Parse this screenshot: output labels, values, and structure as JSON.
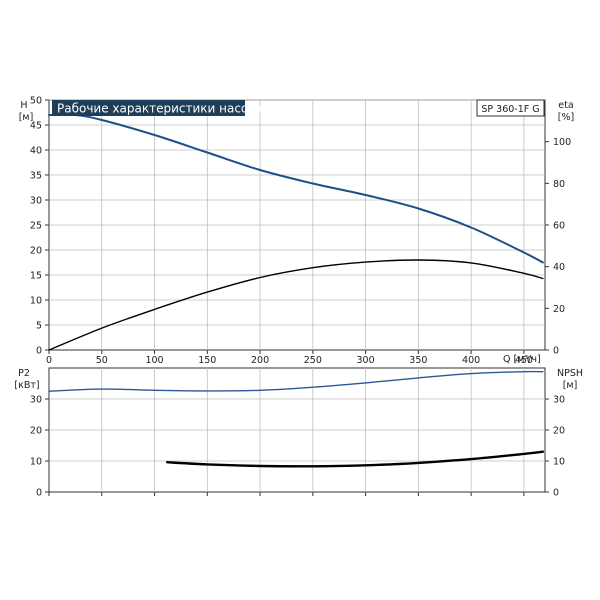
{
  "header": {
    "title": "Рабочие характеристики насоса",
    "model": "SP 360-1F G"
  },
  "colors": {
    "title_bg": "#1f3e5a",
    "title_text": "#ffffff",
    "head_curve": "#1e4f8a",
    "eta_curve": "#000000",
    "p2_curve": "#2a5a95",
    "npsh_curve": "#000000",
    "grid": "#bfbfbf",
    "frame": "#333333"
  },
  "chart_data": [
    {
      "type": "line",
      "name": "head-and-efficiency",
      "xlabel": "Q [м³/ч]",
      "x_ticks": [
        0,
        50,
        100,
        150,
        200,
        250,
        300,
        350,
        400,
        450
      ],
      "xlim": [
        0,
        470
      ],
      "grid": true,
      "left_axis": {
        "label_top": "H",
        "label_unit": "[м]",
        "ylim": [
          0,
          50
        ],
        "ticks": [
          0,
          5,
          10,
          15,
          20,
          25,
          30,
          35,
          40,
          45,
          50
        ]
      },
      "right_axis": {
        "label_top": "eta",
        "label_unit": "[%]",
        "ylim": [
          0,
          120
        ],
        "ticks": [
          0,
          20,
          40,
          60,
          80,
          100
        ]
      },
      "series": [
        {
          "axis": "left",
          "x": [
            0,
            25,
            50,
            100,
            150,
            200,
            250,
            300,
            350,
            400,
            450,
            468
          ],
          "y": [
            47,
            47,
            46,
            43,
            39.5,
            36,
            33.3,
            31,
            28.3,
            24.5,
            19.5,
            17.5
          ]
        },
        {
          "axis": "right",
          "x": [
            0,
            50,
            100,
            150,
            200,
            250,
            300,
            350,
            400,
            450,
            468
          ],
          "y": [
            0,
            10.5,
            19.5,
            27.8,
            34.8,
            39.5,
            42.2,
            43.2,
            41.8,
            36.8,
            34.3
          ]
        }
      ]
    },
    {
      "type": "line",
      "name": "power-and-npsh",
      "x_ticks": [
        0,
        50,
        100,
        150,
        200,
        250,
        300,
        350,
        400,
        450
      ],
      "xlim": [
        0,
        470
      ],
      "grid": true,
      "left_axis": {
        "label_top": "P2",
        "label_unit": "[кВт]",
        "ylim": [
          0,
          40
        ],
        "ticks": [
          0,
          10,
          20,
          30
        ]
      },
      "right_axis": {
        "label_top": "NPSH",
        "label_unit": "[м]",
        "ylim": [
          0,
          40
        ],
        "ticks": [
          0,
          10,
          20,
          30
        ]
      },
      "series": [
        {
          "axis": "left",
          "x": [
            0,
            50,
            100,
            150,
            200,
            250,
            300,
            350,
            400,
            450,
            468
          ],
          "y": [
            32.5,
            33.2,
            32.8,
            32.6,
            32.8,
            33.8,
            35.2,
            36.8,
            38.2,
            38.8,
            38.8
          ]
        },
        {
          "axis": "right",
          "x": [
            112,
            150,
            200,
            250,
            300,
            350,
            400,
            450,
            468
          ],
          "y": [
            9.6,
            8.9,
            8.4,
            8.3,
            8.6,
            9.4,
            10.6,
            12.3,
            13.0
          ]
        }
      ]
    }
  ]
}
